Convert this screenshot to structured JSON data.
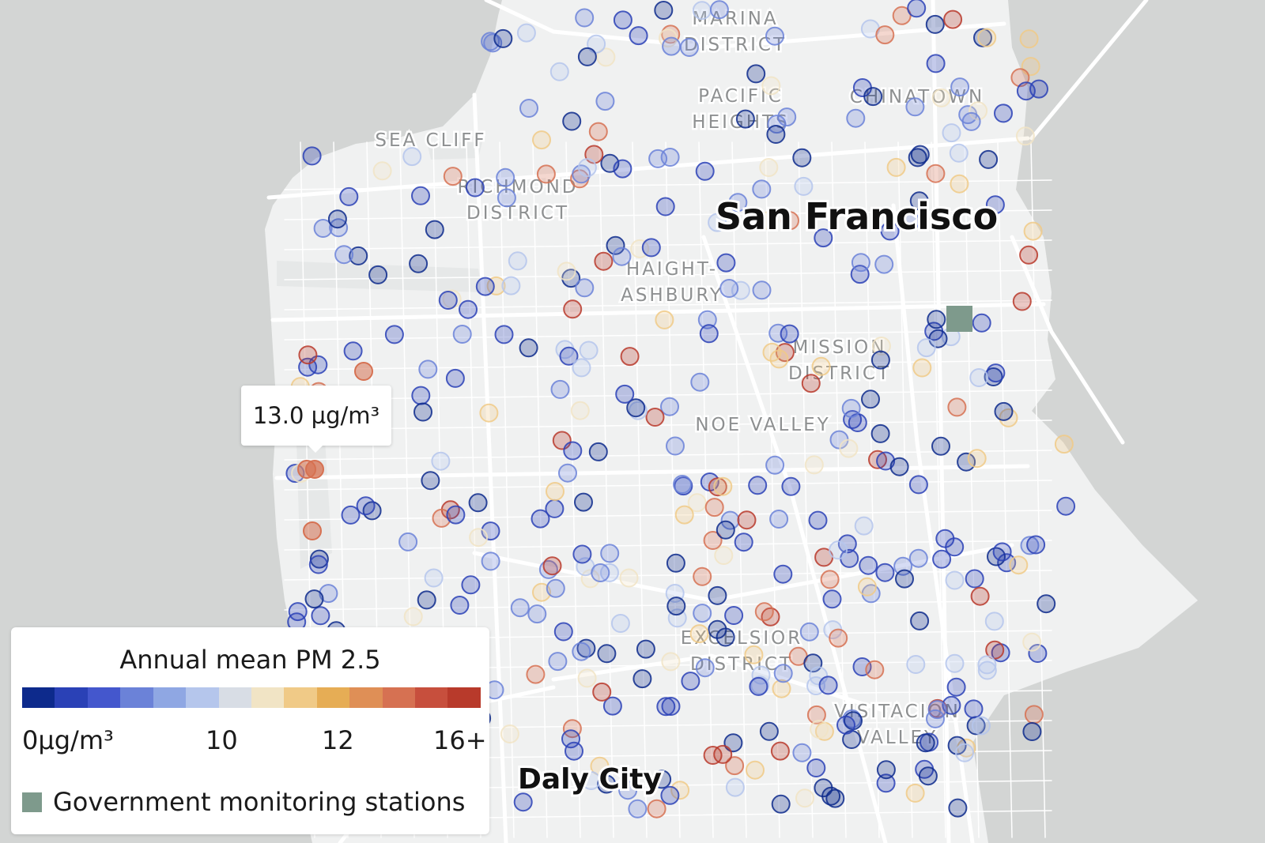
{
  "colors": {
    "water": "#d3d5d4",
    "land": "#f0f1f1",
    "road": "#ffffff",
    "station": "#7e9a8c",
    "ramp": [
      "#0d2a8c",
      "#2a41b6",
      "#4457cd",
      "#6b82d8",
      "#8fa7e3",
      "#b5c6ec",
      "#d8dde5",
      "#f1e4c5",
      "#f0ca87",
      "#e6ad55",
      "#df8f56",
      "#d67152",
      "#c74f3d",
      "#b83a2b"
    ]
  },
  "labels": {
    "city_main": "San Francisco",
    "city_south": "Daly City",
    "neighborhoods": [
      {
        "key": "marina",
        "lines": [
          "MARINA",
          "DISTRICT"
        ]
      },
      {
        "key": "pacific-heights",
        "lines": [
          "PACIFIC",
          "HEIGHTS"
        ]
      },
      {
        "key": "chinatown",
        "lines": [
          "CHINATOWN"
        ]
      },
      {
        "key": "sea-cliff",
        "lines": [
          "SEA CLIFF"
        ]
      },
      {
        "key": "richmond",
        "lines": [
          "RICHMOND",
          "DISTRICT"
        ]
      },
      {
        "key": "haight-ashbury",
        "lines": [
          "HAIGHT-",
          "ASHBURY"
        ]
      },
      {
        "key": "mission",
        "lines": [
          "MISSION",
          "DISTRICT"
        ]
      },
      {
        "key": "noe-valley",
        "lines": [
          "NOE VALLEY"
        ]
      },
      {
        "key": "excelsior",
        "lines": [
          "EXCELSIOR",
          "DISTRICT"
        ]
      },
      {
        "key": "visitacion",
        "lines": [
          "VISITACION",
          "VALLEY"
        ]
      }
    ]
  },
  "tooltip": {
    "text": "13.0 µg/m³"
  },
  "legend": {
    "title": "Annual mean PM 2.5",
    "ticks": [
      "0µg/m³",
      "10",
      "12",
      "16+"
    ],
    "stations_label": "Government monitoring stations"
  },
  "stations": [
    {
      "name": "government-station"
    }
  ],
  "sensor_color_levels": [
    14,
    12,
    9,
    8,
    6,
    4,
    2,
    1
  ]
}
